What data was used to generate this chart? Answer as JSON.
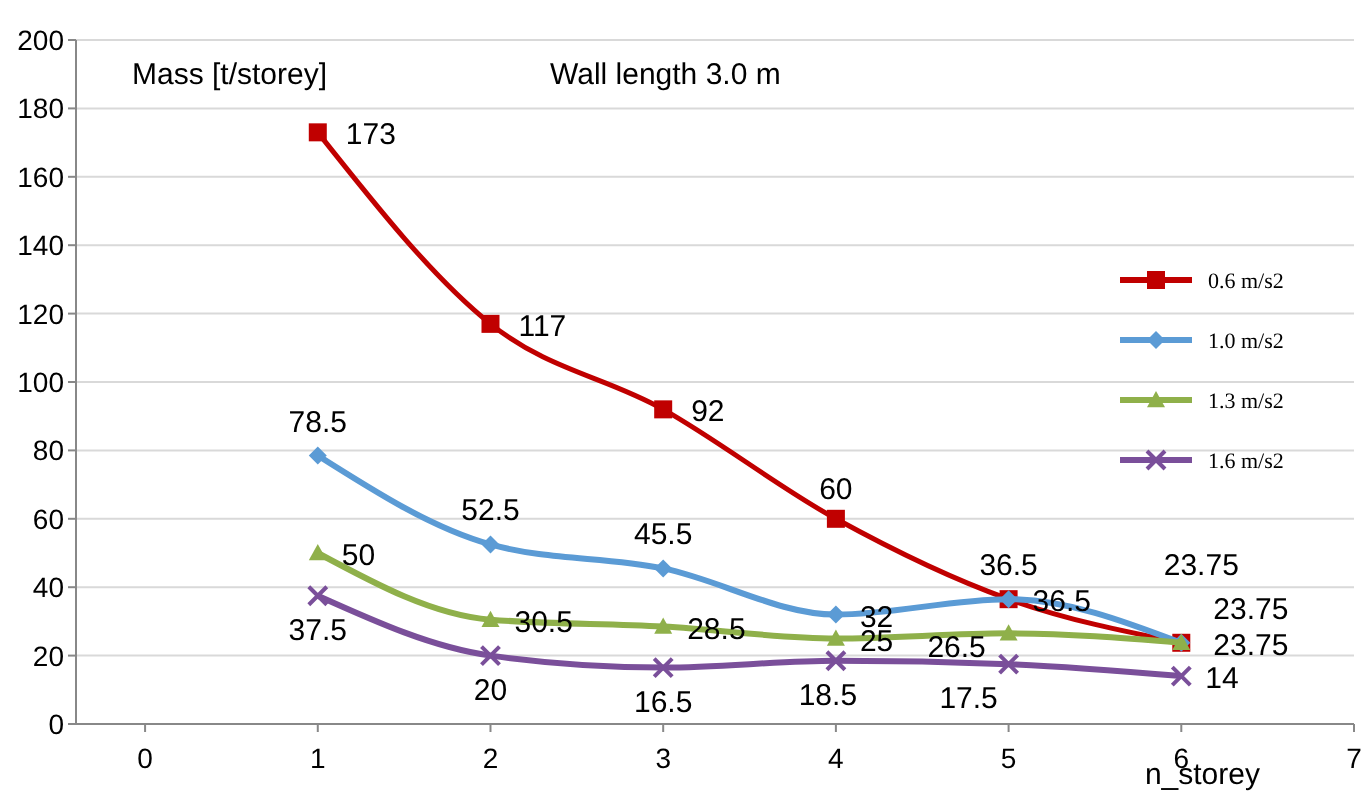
{
  "chart_data": {
    "type": "line",
    "title": "Wall length 3.0 m",
    "ylabel": "Mass [t/storey]",
    "xlabel": "n_storey",
    "x": [
      1,
      2,
      3,
      4,
      5,
      6
    ],
    "series": [
      {
        "name": "0.6 m/s2",
        "color": "#c00000",
        "marker": "square",
        "values": [
          173,
          117,
          92,
          60,
          36.5,
          23.75
        ]
      },
      {
        "name": "1.0 m/s2",
        "color": "#5b9bd5",
        "marker": "diamond",
        "values": [
          78.5,
          52.5,
          45.5,
          32,
          36.5,
          23.75
        ]
      },
      {
        "name": "1.3 m/s2",
        "color": "#8fb04a",
        "marker": "triangle",
        "values": [
          50,
          30.5,
          28.5,
          25,
          26.5,
          23.75
        ]
      },
      {
        "name": "1.6 m/s2",
        "color": "#7a4f9a",
        "marker": "cross",
        "values": [
          37.5,
          20,
          16.5,
          18.5,
          17.5,
          14
        ]
      }
    ],
    "xlim": [
      -0.4,
      7
    ],
    "xticks": [
      0,
      1,
      2,
      3,
      4,
      5,
      6,
      7
    ],
    "ylim": [
      0,
      200
    ],
    "yticks": [
      0,
      20,
      40,
      60,
      80,
      100,
      120,
      140,
      160,
      180,
      200
    ],
    "grid": "y",
    "legend": "right",
    "data_labels": true,
    "line_style": "solid"
  }
}
